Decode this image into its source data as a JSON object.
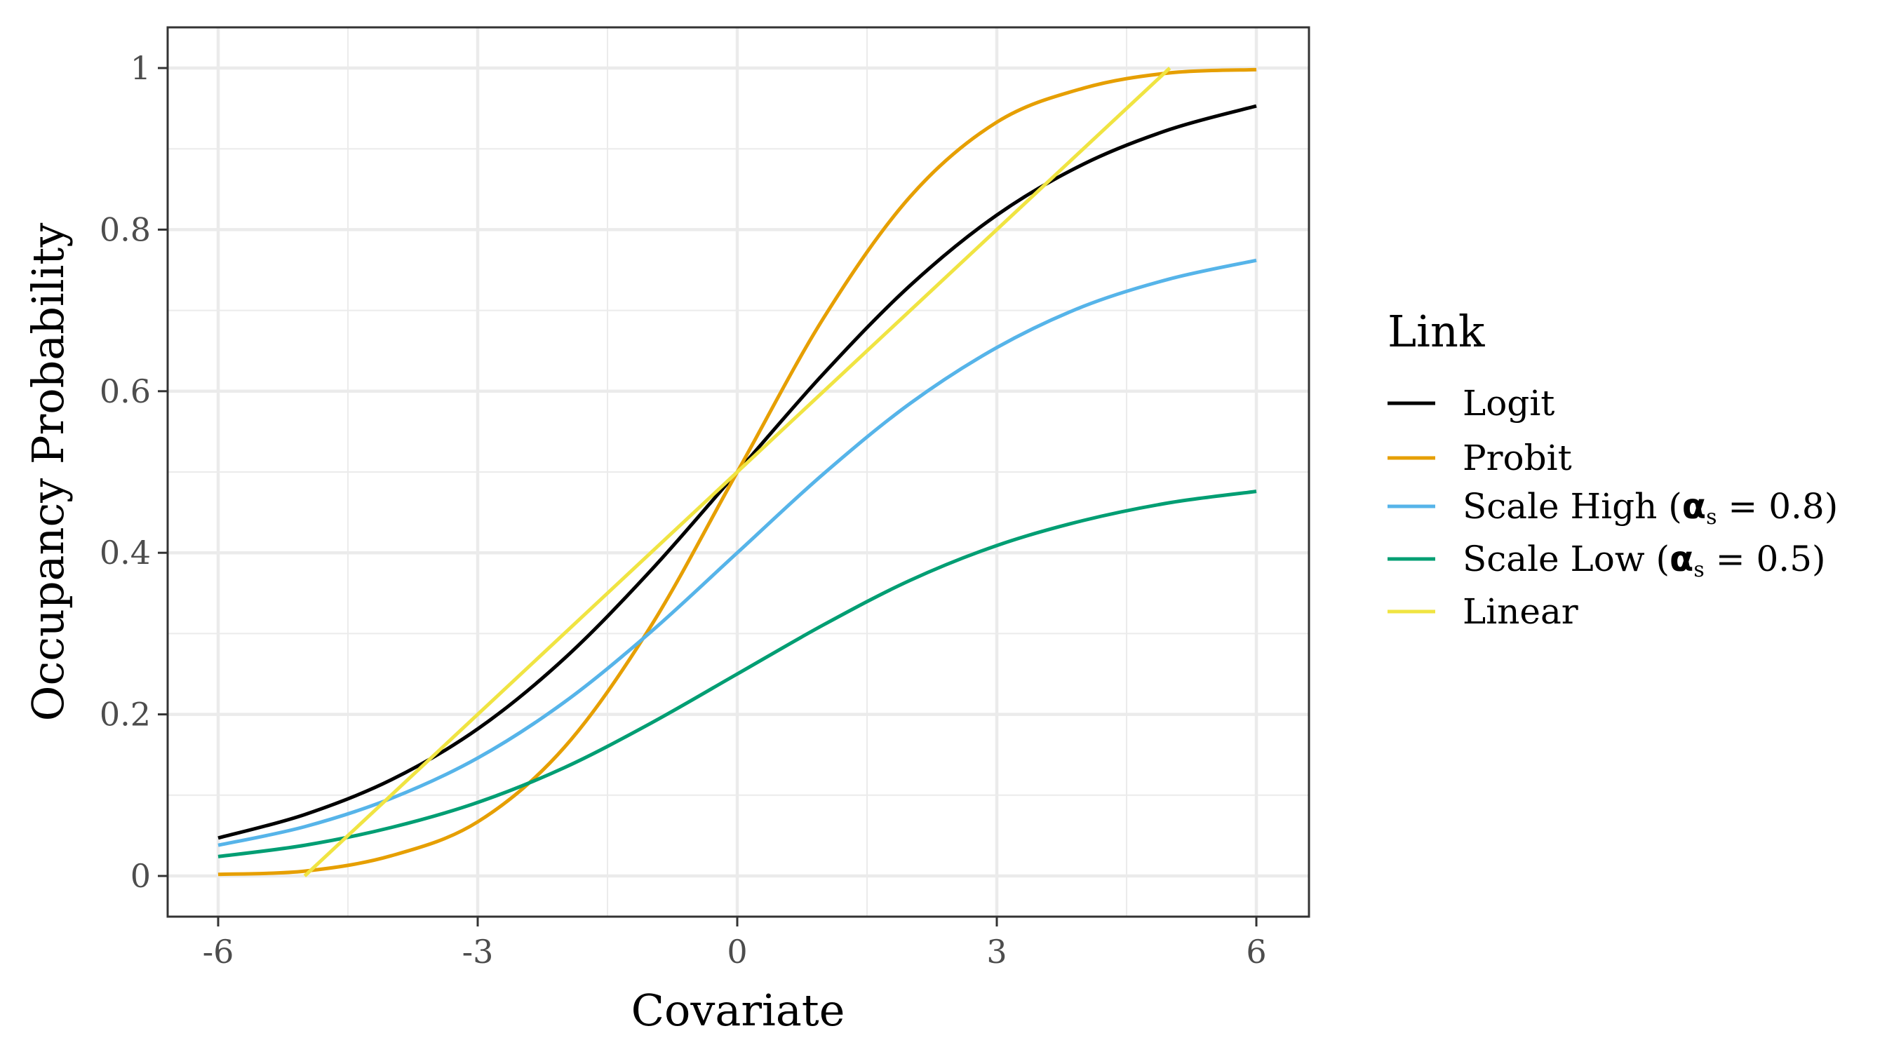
{
  "chart_data": {
    "type": "line",
    "title": "",
    "xlabel": "Covariate",
    "ylabel": "Occupancy Probability",
    "xlim": [
      -6.3,
      6.3
    ],
    "ylim": [
      -0.05,
      1.05
    ],
    "xticks": [
      -6,
      -3,
      0,
      3,
      6
    ],
    "xtick_labels": [
      "-6",
      "-3",
      "0",
      "3",
      "6"
    ],
    "yticks": [
      0,
      0.2,
      0.4,
      0.6,
      0.8,
      1
    ],
    "ytick_labels": [
      "0",
      "0.2",
      "0.4",
      "0.6",
      "0.8",
      "1"
    ],
    "grid": true,
    "legend": {
      "title": "Link",
      "position": "right",
      "entries": [
        {
          "pre": "Logit",
          "alpha": "",
          "sub": "",
          "post": ""
        },
        {
          "pre": "Probit",
          "alpha": "",
          "sub": "",
          "post": ""
        },
        {
          "pre": "Scale High (",
          "alpha": "α",
          "sub": "s",
          "post": " = 0.8)"
        },
        {
          "pre": "Scale Low (",
          "alpha": "α",
          "sub": "s",
          "post": " = 0.5)"
        },
        {
          "pre": "Linear",
          "alpha": "",
          "sub": "",
          "post": ""
        }
      ]
    },
    "series": [
      {
        "name": "Logit",
        "color": "#000000",
        "x": [
          -6,
          -5,
          -4,
          -3,
          -2,
          -1,
          0,
          1,
          2,
          3,
          4,
          5,
          6
        ],
        "values": [
          0.047,
          0.076,
          0.119,
          0.182,
          0.269,
          0.378,
          0.5,
          0.622,
          0.731,
          0.818,
          0.881,
          0.924,
          0.953
        ]
      },
      {
        "name": "Probit",
        "color": "#E69F00",
        "x": [
          -6,
          -5,
          -4,
          -3,
          -2,
          -1,
          0,
          1,
          2,
          3,
          4,
          5,
          6
        ],
        "values": [
          0.002,
          0.006,
          0.025,
          0.067,
          0.159,
          0.309,
          0.5,
          0.691,
          0.841,
          0.933,
          0.975,
          0.994,
          0.998
        ]
      },
      {
        "name": "Scale High (αs = 0.8)",
        "color": "#56B4E9",
        "x": [
          -6,
          -5,
          -4,
          -3,
          -2,
          -1,
          0,
          1,
          2,
          3,
          4,
          5,
          6
        ],
        "values": [
          0.038,
          0.061,
          0.096,
          0.146,
          0.215,
          0.302,
          0.4,
          0.498,
          0.585,
          0.654,
          0.705,
          0.739,
          0.762
        ]
      },
      {
        "name": "Scale Low (αs = 0.5)",
        "color": "#009E73",
        "x": [
          -6,
          -5,
          -4,
          -3,
          -2,
          -1,
          0,
          1,
          2,
          3,
          4,
          5,
          6
        ],
        "values": [
          0.024,
          0.038,
          0.06,
          0.091,
          0.134,
          0.189,
          0.25,
          0.311,
          0.366,
          0.409,
          0.44,
          0.462,
          0.476
        ]
      },
      {
        "name": "Linear",
        "color": "#F0E442",
        "x": [
          -5,
          5
        ],
        "values": [
          0.0,
          1.0
        ]
      }
    ]
  }
}
